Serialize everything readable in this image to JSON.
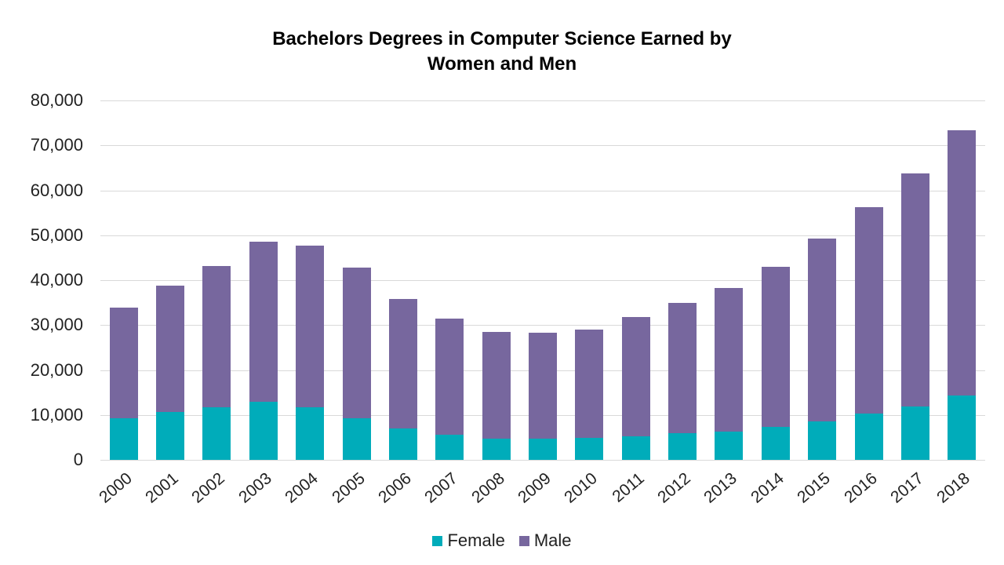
{
  "chart_data": {
    "type": "bar",
    "stacked": true,
    "title": "Bachelors Degrees in Computer Science Earned by Women and Men",
    "title_lines": [
      "Bachelors Degrees in Computer Science Earned by",
      "Women and Men"
    ],
    "xlabel": "",
    "ylabel": "",
    "ylim": [
      0,
      80000
    ],
    "yticks": [
      0,
      10000,
      20000,
      30000,
      40000,
      50000,
      60000,
      70000,
      80000
    ],
    "ytick_labels": [
      "0",
      "10,000",
      "20,000",
      "30,000",
      "40,000",
      "50,000",
      "60,000",
      "70,000",
      "80,000"
    ],
    "grid": true,
    "legend_position": "bottom",
    "categories": [
      "2000",
      "2001",
      "2002",
      "2003",
      "2004",
      "2005",
      "2006",
      "2007",
      "2008",
      "2009",
      "2010",
      "2011",
      "2012",
      "2013",
      "2014",
      "2015",
      "2016",
      "2017",
      "2018"
    ],
    "series": [
      {
        "name": "Female",
        "color": "#00acba",
        "values": [
          9300,
          10700,
          11700,
          12900,
          11700,
          9300,
          7000,
          5600,
          4700,
          4700,
          4900,
          5200,
          5900,
          6300,
          7400,
          8600,
          10300,
          11900,
          14300
        ]
      },
      {
        "name": "Male",
        "color": "#77679e",
        "values": [
          24600,
          28100,
          31400,
          35700,
          36000,
          33500,
          28800,
          25800,
          23800,
          23600,
          24100,
          26600,
          29000,
          32000,
          35600,
          40700,
          45900,
          51900,
          59100
        ]
      }
    ],
    "totals": [
      33900,
      38800,
      43100,
      48600,
      47700,
      42800,
      35800,
      31400,
      28500,
      28300,
      29000,
      31800,
      34900,
      38300,
      43000,
      49300,
      56200,
      63800,
      73400
    ]
  }
}
